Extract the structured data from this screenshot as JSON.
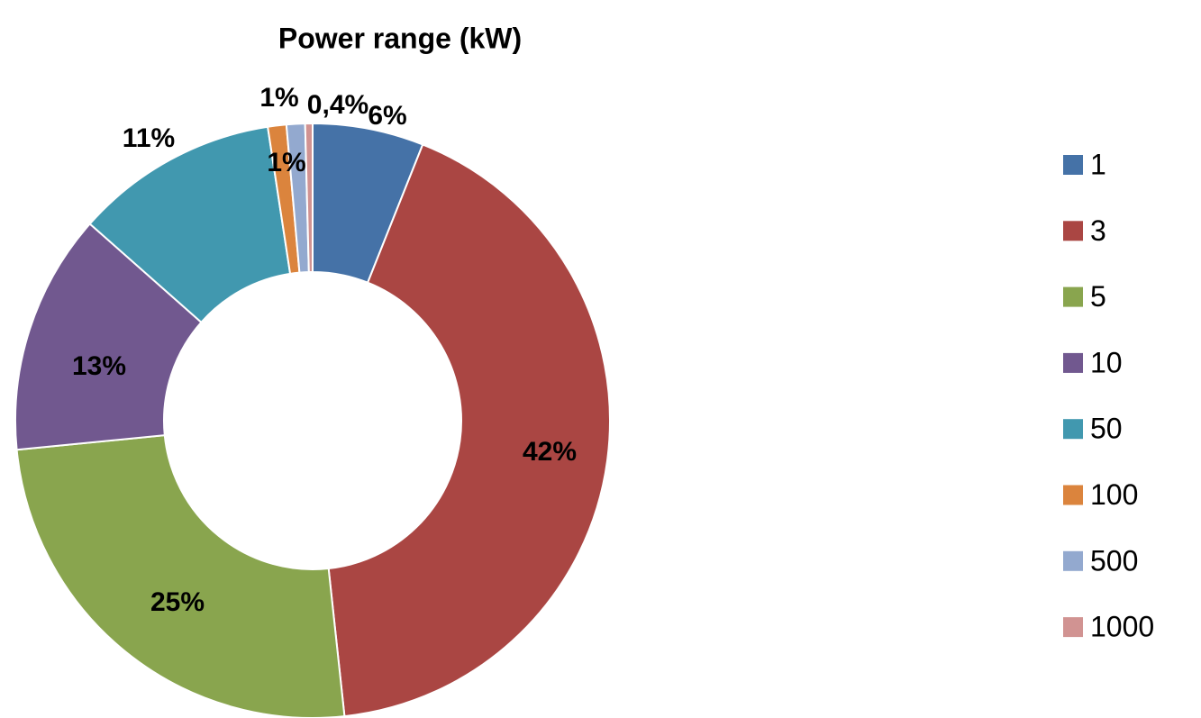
{
  "chart_data": {
    "type": "donut",
    "title": "Power range (kW)",
    "categories": [
      "1",
      "3",
      "5",
      "10",
      "50",
      "100",
      "500",
      "1000"
    ],
    "values": [
      6,
      42,
      25,
      13,
      11,
      1,
      1,
      0.4
    ],
    "value_labels": [
      "6%",
      "42%",
      "25%",
      "13%",
      "11%",
      "1%",
      "1%",
      "0,4%"
    ],
    "colors": [
      "#4572a7",
      "#aa4643",
      "#89a54e",
      "#71588f",
      "#4198af",
      "#db843d",
      "#93a9cf",
      "#d19392"
    ],
    "legend": "right"
  }
}
